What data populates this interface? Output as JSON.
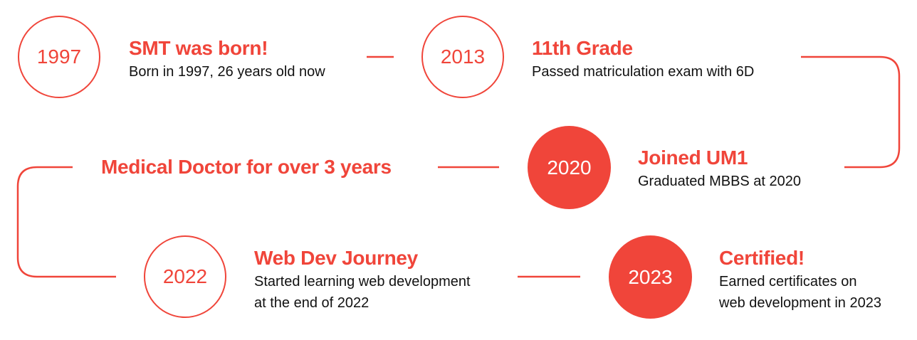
{
  "colors": {
    "accent": "#f0453a",
    "text": "#111111",
    "background": "#ffffff"
  },
  "milestones": [
    {
      "year": "1997",
      "title": "SMT was born!",
      "description": [
        "Born in 1997, 26 years old now"
      ],
      "style": "outline"
    },
    {
      "year": "2013",
      "title": "11th Grade",
      "description": [
        "Passed matriculation exam with 6D"
      ],
      "style": "outline"
    },
    {
      "year": "2020",
      "title": "Joined UM1",
      "description": [
        "Graduated MBBS at 2020"
      ],
      "style": "filled"
    },
    {
      "year": "2022",
      "title": "Web Dev Journey",
      "description": [
        "Started learning web development",
        "at the end of 2022"
      ],
      "style": "outline"
    },
    {
      "year": "2023",
      "title": "Certified!",
      "description": [
        "Earned certificates on",
        "web development in 2023"
      ],
      "style": "filled"
    }
  ],
  "note": {
    "title": "Medical Doctor for over 3 years"
  }
}
